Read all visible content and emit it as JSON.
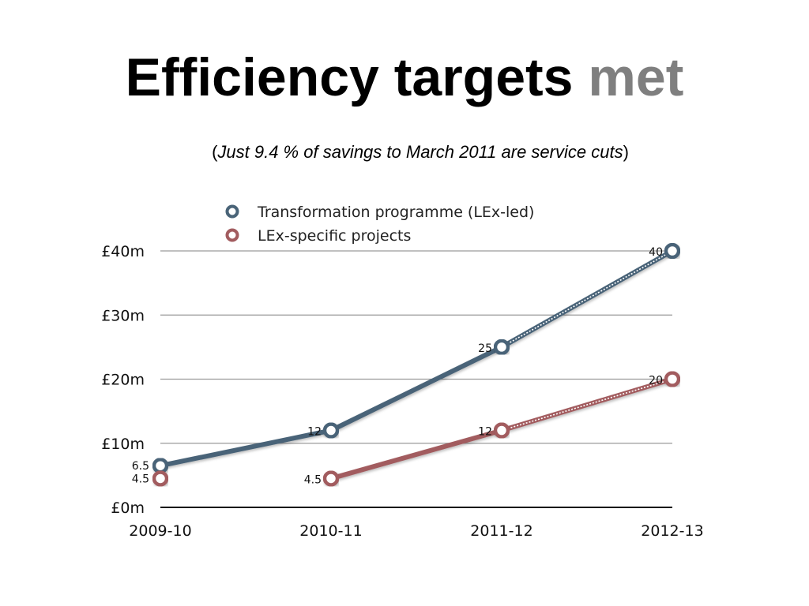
{
  "slide": {
    "title_main": "Efficiency targets",
    "title_accent": "met",
    "subtitle_open": "(",
    "subtitle_italic": "Just 9.4 % of savings to March 2011 are service cuts",
    "subtitle_close": ")"
  },
  "chart_data": {
    "type": "line",
    "title": "",
    "xlabel": "",
    "ylabel": "",
    "categories": [
      "2009-10",
      "2010-11",
      "2011-12",
      "2012-13"
    ],
    "ylim": [
      0,
      40
    ],
    "yticks": [
      {
        "value": 0,
        "label": "£0m"
      },
      {
        "value": 10,
        "label": "£10m"
      },
      {
        "value": 20,
        "label": "£20m"
      },
      {
        "value": 30,
        "label": "£30m"
      },
      {
        "value": 40,
        "label": "£40m"
      }
    ],
    "grid": true,
    "legend_position": "top",
    "series": [
      {
        "name": "Transformation programme (LEx-led)",
        "color": "#4a6478",
        "values": [
          6.5,
          12,
          25,
          40
        ],
        "labels": [
          "6.5",
          "12",
          "25",
          "40"
        ],
        "projected_from_index": 2
      },
      {
        "name": "LEx-specific projects",
        "color": "#a25c5f",
        "values": [
          4.5,
          4.5,
          12,
          20
        ],
        "labels": [
          "4.5",
          "4.5",
          "12",
          "20"
        ],
        "projected_from_index": 2
      }
    ]
  }
}
